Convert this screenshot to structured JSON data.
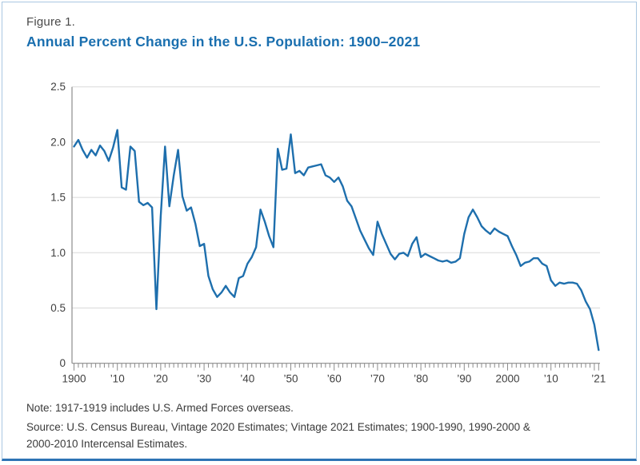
{
  "figure_label": "Figure 1.",
  "title": "Annual Percent Change in the U.S. Population: 1900–2021",
  "note": "Note: 1917-1919 includes U.S. Armed Forces overseas.",
  "source_line1": "Source: U.S. Census Bureau, Vintage 2020 Estimates; Vintage 2021 Estimates; 1900-1990, 1990-2000 &",
  "source_line2": "2000-2010 Intercensal Estimates.",
  "colors": {
    "line": "#1e6fad",
    "title": "#1a6faf",
    "grid": "#d9d9d9",
    "axis": "#8c8c8c",
    "tick_label": "#404040",
    "border_bottom": "#2e74b5",
    "border_light": "#aac7e1"
  },
  "chart_data": {
    "type": "line",
    "title": "Annual Percent Change in the U.S. Population: 1900–2021",
    "xlabel": "",
    "ylabel": "",
    "ylim": [
      0,
      2.5
    ],
    "grid": "horizontal",
    "legend": "none",
    "y_ticks": [
      {
        "value": 0,
        "label": "0"
      },
      {
        "value": 0.5,
        "label": "0.5"
      },
      {
        "value": 1.0,
        "label": "1.0"
      },
      {
        "value": 1.5,
        "label": "1.5"
      },
      {
        "value": 2.0,
        "label": "2.0"
      },
      {
        "value": 2.5,
        "label": "2.5"
      }
    ],
    "x_tick_labels": [
      {
        "year": 1900,
        "label": "1900"
      },
      {
        "year": 1910,
        "label": "’10"
      },
      {
        "year": 1920,
        "label": "’20"
      },
      {
        "year": 1930,
        "label": "’30"
      },
      {
        "year": 1940,
        "label": "’40"
      },
      {
        "year": 1950,
        "label": "’50"
      },
      {
        "year": 1960,
        "label": "’60"
      },
      {
        "year": 1970,
        "label": "’70"
      },
      {
        "year": 1980,
        "label": "’80"
      },
      {
        "year": 1990,
        "label": "’90"
      },
      {
        "year": 2000,
        "label": "2000"
      },
      {
        "year": 2010,
        "label": "’10"
      },
      {
        "year": 2021,
        "label": "’21"
      }
    ],
    "x_start": 1900,
    "x_end": 2021,
    "values": [
      1.96,
      2.02,
      1.93,
      1.86,
      1.93,
      1.88,
      1.97,
      1.92,
      1.83,
      1.95,
      2.11,
      1.59,
      1.57,
      1.96,
      1.92,
      1.46,
      1.43,
      1.45,
      1.41,
      0.49,
      1.33,
      1.96,
      1.42,
      1.7,
      1.93,
      1.51,
      1.38,
      1.41,
      1.26,
      1.06,
      1.08,
      0.79,
      0.67,
      0.6,
      0.64,
      0.7,
      0.64,
      0.6,
      0.77,
      0.79,
      0.9,
      0.96,
      1.05,
      1.39,
      1.28,
      1.15,
      1.05,
      1.94,
      1.75,
      1.76,
      2.07,
      1.72,
      1.74,
      1.7,
      1.77,
      1.78,
      1.79,
      1.8,
      1.7,
      1.68,
      1.64,
      1.68,
      1.6,
      1.47,
      1.42,
      1.31,
      1.2,
      1.12,
      1.04,
      0.98,
      1.28,
      1.17,
      1.08,
      0.99,
      0.94,
      0.99,
      1.0,
      0.97,
      1.08,
      1.14,
      0.96,
      0.99,
      0.97,
      0.95,
      0.93,
      0.92,
      0.93,
      0.91,
      0.92,
      0.95,
      1.17,
      1.32,
      1.39,
      1.32,
      1.24,
      1.2,
      1.17,
      1.22,
      1.19,
      1.17,
      1.15,
      1.06,
      0.98,
      0.88,
      0.91,
      0.92,
      0.95,
      0.95,
      0.9,
      0.88,
      0.75,
      0.7,
      0.73,
      0.72,
      0.73,
      0.73,
      0.72,
      0.66,
      0.56,
      0.49,
      0.35,
      0.12
    ]
  }
}
